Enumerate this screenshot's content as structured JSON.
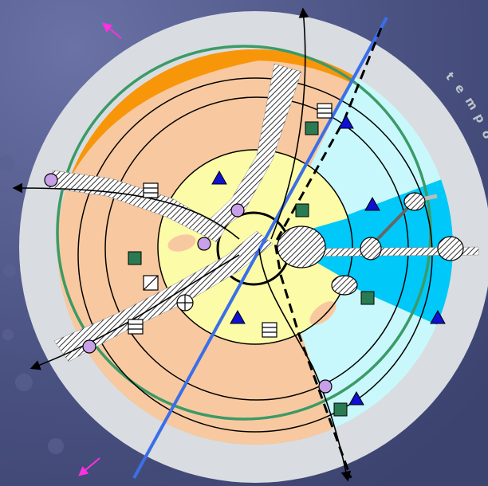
{
  "palette": {
    "background": "#4a5282",
    "rim": "#d9dde2",
    "orange": "#f8960a",
    "peach": "#f8c9a0",
    "yellow": "#fcfba8",
    "light_cyan": "#c8f8fc",
    "cyan": "#00c8f8",
    "green_ring": "#3c9a66",
    "blue_line": "#3a6fe8",
    "lavender": "#c8a0e8",
    "triangle_blue": "#1010d0",
    "square_green": "#2a7a52",
    "magenta_arrow": "#ff30e0"
  },
  "rim_text": "tempo",
  "icons": {
    "triangle": "triangle-marker-icon",
    "square": "square-marker-icon",
    "circle": "circle-marker-icon",
    "striped_square": "striped-square-marker-icon",
    "crossed_circle": "crossed-circle-marker-icon",
    "slashed_square": "slashed-square-marker-icon",
    "arrow": "arrow-icon"
  }
}
